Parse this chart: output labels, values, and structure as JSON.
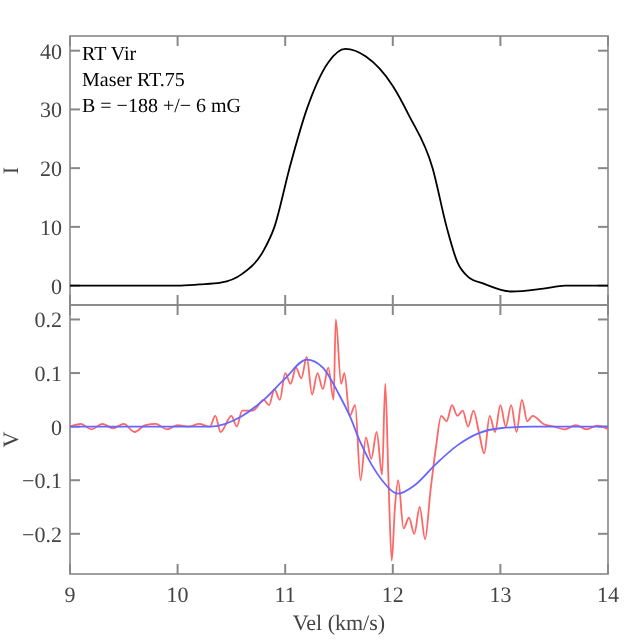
{
  "chart_data": [
    {
      "type": "line",
      "ylabel": "I",
      "annotations": [
        "RT Vir",
        "Maser RT.75",
        "B = −188 +/− 6 mG"
      ],
      "xlim": [
        9,
        14
      ],
      "xticks": [
        9,
        10,
        11,
        12,
        13,
        14
      ],
      "ylim": [
        -3.3,
        42.5
      ],
      "yticks": [
        0,
        10,
        20,
        30,
        40
      ],
      "tick_labels": "y",
      "series": [
        {
          "color": "#000000",
          "x": [
            9,
            10,
            10.2,
            10.4,
            10.6,
            10.8,
            10.9,
            11.04,
            11.2,
            11.4,
            11.56,
            11.75,
            12.0,
            12.15,
            12.37,
            12.5,
            12.6,
            12.7,
            12.85,
            13.1,
            13.4,
            13.6,
            14
          ],
          "values": [
            0,
            0,
            0.2,
            0.5,
            2,
            6,
            10,
            20,
            30,
            38,
            40.3,
            39,
            34,
            29,
            20,
            10,
            4,
            1.5,
            0.3,
            -1,
            -0.5,
            0,
            0
          ]
        }
      ]
    },
    {
      "type": "line",
      "xlabel": "Vel (km/s)",
      "ylabel": "V",
      "xlim": [
        9,
        14
      ],
      "xticks": [
        9,
        10,
        11,
        12,
        13,
        14
      ],
      "ylim": [
        -0.275,
        0.227
      ],
      "yticks": [
        {
          "value": -0.2,
          "label": "−0.2"
        },
        {
          "value": -0.1,
          "label": "−0.1"
        },
        0,
        0.1,
        0.2
      ],
      "series": [
        {
          "color": "#ff6666",
          "x": [
            9,
            9.1,
            9.2,
            9.3,
            9.4,
            9.5,
            9.6,
            9.7,
            9.8,
            9.9,
            10,
            10.1,
            10.2,
            10.3,
            10.35,
            10.4,
            10.5,
            10.55,
            10.6,
            10.7,
            10.8,
            10.85,
            10.9,
            10.95,
            11,
            11.05,
            11.1,
            11.15,
            11.2,
            11.25,
            11.3,
            11.35,
            11.4,
            11.45,
            11.47,
            11.52,
            11.55,
            11.6,
            11.65,
            11.7,
            11.75,
            11.8,
            11.85,
            11.9,
            11.93,
            11.96,
            11.99,
            12.02,
            12.05,
            12.1,
            12.15,
            12.2,
            12.25,
            12.3,
            12.35,
            12.4,
            12.45,
            12.5,
            12.55,
            12.6,
            12.65,
            12.7,
            12.75,
            12.8,
            12.85,
            12.9,
            12.95,
            13,
            13.05,
            13.1,
            13.15,
            13.2,
            13.25,
            13.3,
            13.4,
            13.5,
            13.6,
            13.7,
            13.8,
            13.9,
            14
          ],
          "values": [
            0,
            0.005,
            -0.005,
            0.005,
            -0.003,
            0.005,
            -0.01,
            0.003,
            0.005,
            -0.005,
            0.003,
            0,
            0.005,
            0,
            0.02,
            -0.01,
            0.02,
            0,
            0.03,
            0.03,
            0.05,
            0.04,
            0.07,
            0.05,
            0.1,
            0.08,
            0.11,
            0.09,
            0.13,
            0.06,
            0.1,
            0.07,
            0.11,
            0.05,
            0.2,
            0.08,
            0.1,
            0.02,
            0.04,
            -0.1,
            -0.02,
            -0.06,
            -0.01,
            -0.09,
            0.08,
            -0.1,
            -0.25,
            -0.15,
            -0.1,
            -0.19,
            -0.17,
            -0.2,
            -0.15,
            -0.21,
            -0.12,
            -0.04,
            0.02,
            0.01,
            0.04,
            0.02,
            0.03,
            0,
            0.03,
            -0.01,
            -0.05,
            0.02,
            -0.01,
            0.04,
            0,
            0.04,
            -0.01,
            0.05,
            0.01,
            0.02,
            0.005,
            0,
            -0.005,
            0.003,
            -0.005,
            0.002,
            -0.005
          ]
        },
        {
          "color": "#6666ff",
          "x": [
            9,
            10,
            10.3,
            10.6,
            10.8,
            11,
            11.2,
            11.35,
            11.5,
            11.6,
            11.7,
            11.8,
            11.9,
            12.05,
            12.2,
            12.4,
            12.6,
            12.8,
            13,
            13.3,
            14
          ],
          "values": [
            0,
            0,
            0,
            0.02,
            0.05,
            0.09,
            0.125,
            0.11,
            0.06,
            0.02,
            -0.03,
            -0.07,
            -0.1,
            -0.125,
            -0.11,
            -0.07,
            -0.035,
            -0.012,
            -0.003,
            0,
            0
          ]
        }
      ]
    }
  ]
}
